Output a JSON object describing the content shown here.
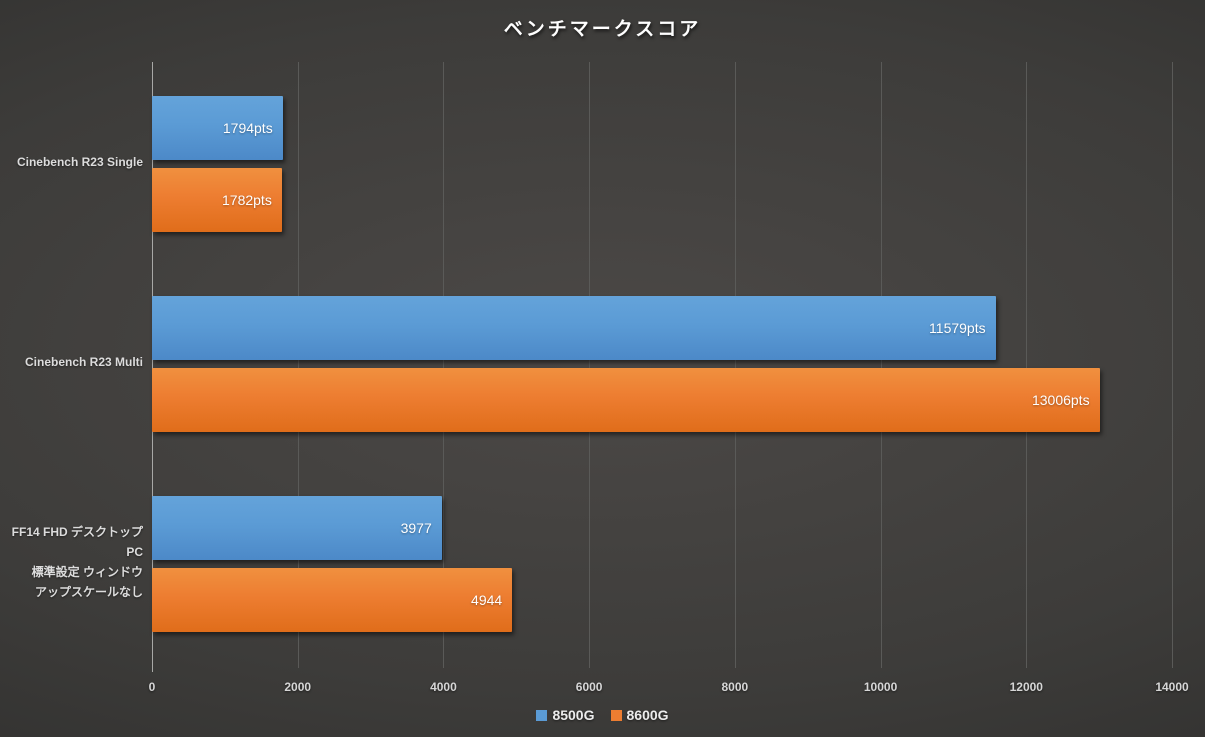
{
  "title": "ベンチマークスコア",
  "colors": {
    "series_8500G": "#5b9bd5",
    "series_8600G": "#ed7d31",
    "background_center": "#4c4947",
    "background_edge": "#262625",
    "gridline": "#5a5a58",
    "axis_line": "#a8a8a6",
    "label_text": "#dcdcdc",
    "value_text": "#ffffff"
  },
  "chart_data": {
    "type": "bar",
    "orientation": "horizontal",
    "title": "ベンチマークスコア",
    "categories": [
      [
        "Cinebench R23 Single"
      ],
      [
        "Cinebench R23 Multi"
      ],
      [
        "FF14 FHD デスクトップPC",
        "標準設定 ウィンドウ",
        "アップスケールなし"
      ]
    ],
    "series": [
      {
        "name": "8500G",
        "color": "#5b9bd5",
        "values": [
          1794,
          11579,
          3977
        ],
        "value_labels": [
          "1794pts",
          "11579pts",
          "3977"
        ]
      },
      {
        "name": "8600G",
        "color": "#ed7d31",
        "values": [
          1782,
          13006,
          4944
        ],
        "value_labels": [
          "1782pts",
          "13006pts",
          "4944"
        ]
      }
    ],
    "xlim": [
      0,
      14000
    ],
    "x_ticks": [
      0,
      2000,
      4000,
      6000,
      8000,
      10000,
      12000,
      14000
    ],
    "x_tick_labels": [
      "0",
      "2000",
      "4000",
      "6000",
      "8000",
      "10000",
      "12000",
      "14000"
    ],
    "xlabel": "",
    "ylabel": "",
    "grid": true,
    "legend_position": "bottom"
  }
}
